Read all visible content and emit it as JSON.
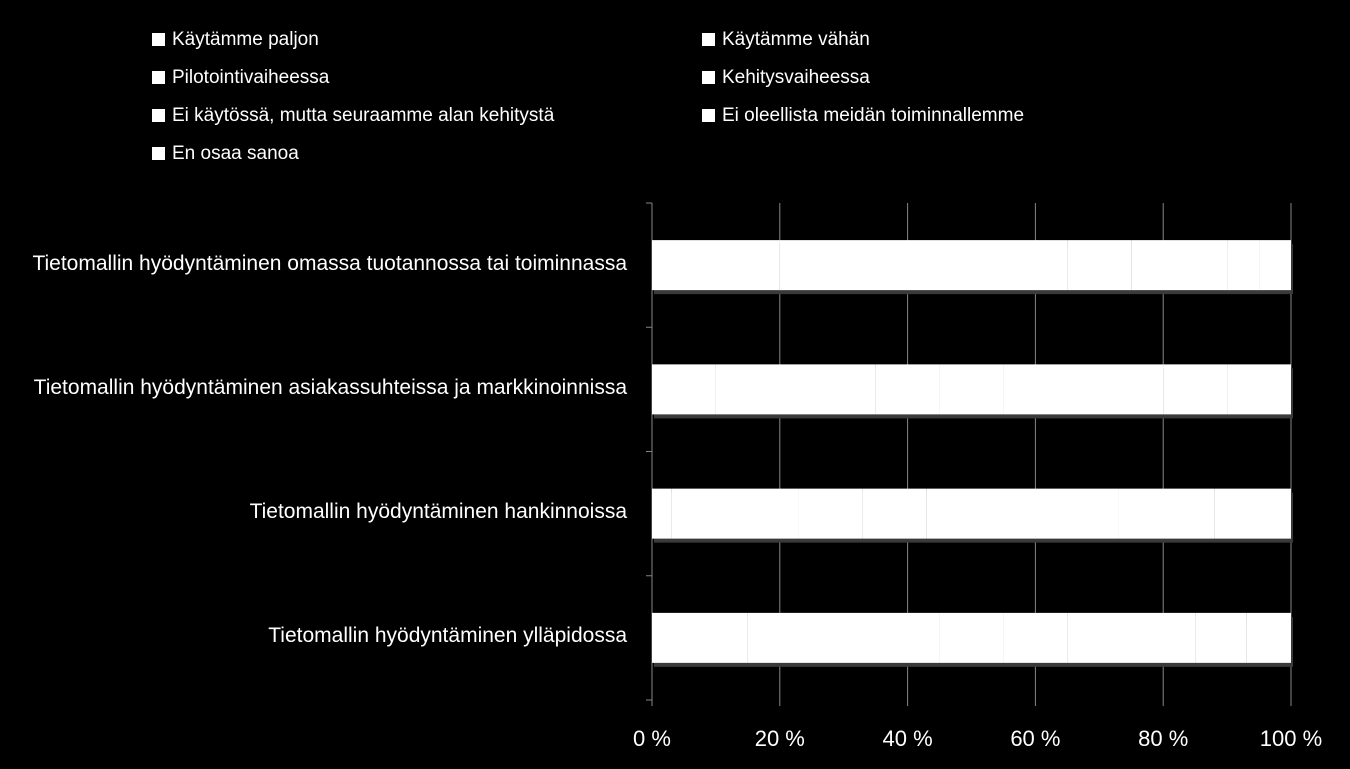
{
  "chart_data": {
    "type": "stacked-bar-horizontal",
    "categories": [
      "Tietomallin hyödyntäminen omassa tuotannossa tai toiminnassa",
      "Tietomallin hyödyntäminen asiakassuhteissa ja markkinoinnissa",
      "Tietomallin hyödyntäminen hankinnoissa",
      "Tietomallin hyödyntäminen ylläpidossa"
    ],
    "series": [
      {
        "name": "Käytämme paljon",
        "color": "#ffffff",
        "values": [
          20,
          10,
          3,
          15
        ]
      },
      {
        "name": "Käytämme vähän",
        "color": "#ffffff",
        "values": [
          30,
          25,
          20,
          30
        ]
      },
      {
        "name": "Pilotointivaiheessa",
        "color": "#ffffff",
        "values": [
          15,
          10,
          10,
          10
        ]
      },
      {
        "name": "Kehitysvaiheessa",
        "color": "#ffffff",
        "values": [
          10,
          10,
          10,
          10
        ]
      },
      {
        "name": "Ei käytössä, mutta seuraamme alan kehitystä",
        "color": "#ffffff",
        "values": [
          15,
          25,
          30,
          20
        ]
      },
      {
        "name": "Ei oleellista meidän toiminnallemme",
        "color": "#ffffff",
        "values": [
          5,
          10,
          15,
          8
        ]
      },
      {
        "name": "En osaa sanoa",
        "color": "#ffffff",
        "values": [
          5,
          10,
          12,
          7
        ]
      }
    ],
    "xlim": [
      0,
      100
    ],
    "xticks": [
      {
        "value": 0,
        "label": "0 %"
      },
      {
        "value": 20,
        "label": "20 %"
      },
      {
        "value": 40,
        "label": "40 %"
      },
      {
        "value": 60,
        "label": "60 %"
      },
      {
        "value": 80,
        "label": "80 %"
      },
      {
        "value": 100,
        "label": "100 %"
      }
    ],
    "grid": true,
    "legend": "top"
  }
}
